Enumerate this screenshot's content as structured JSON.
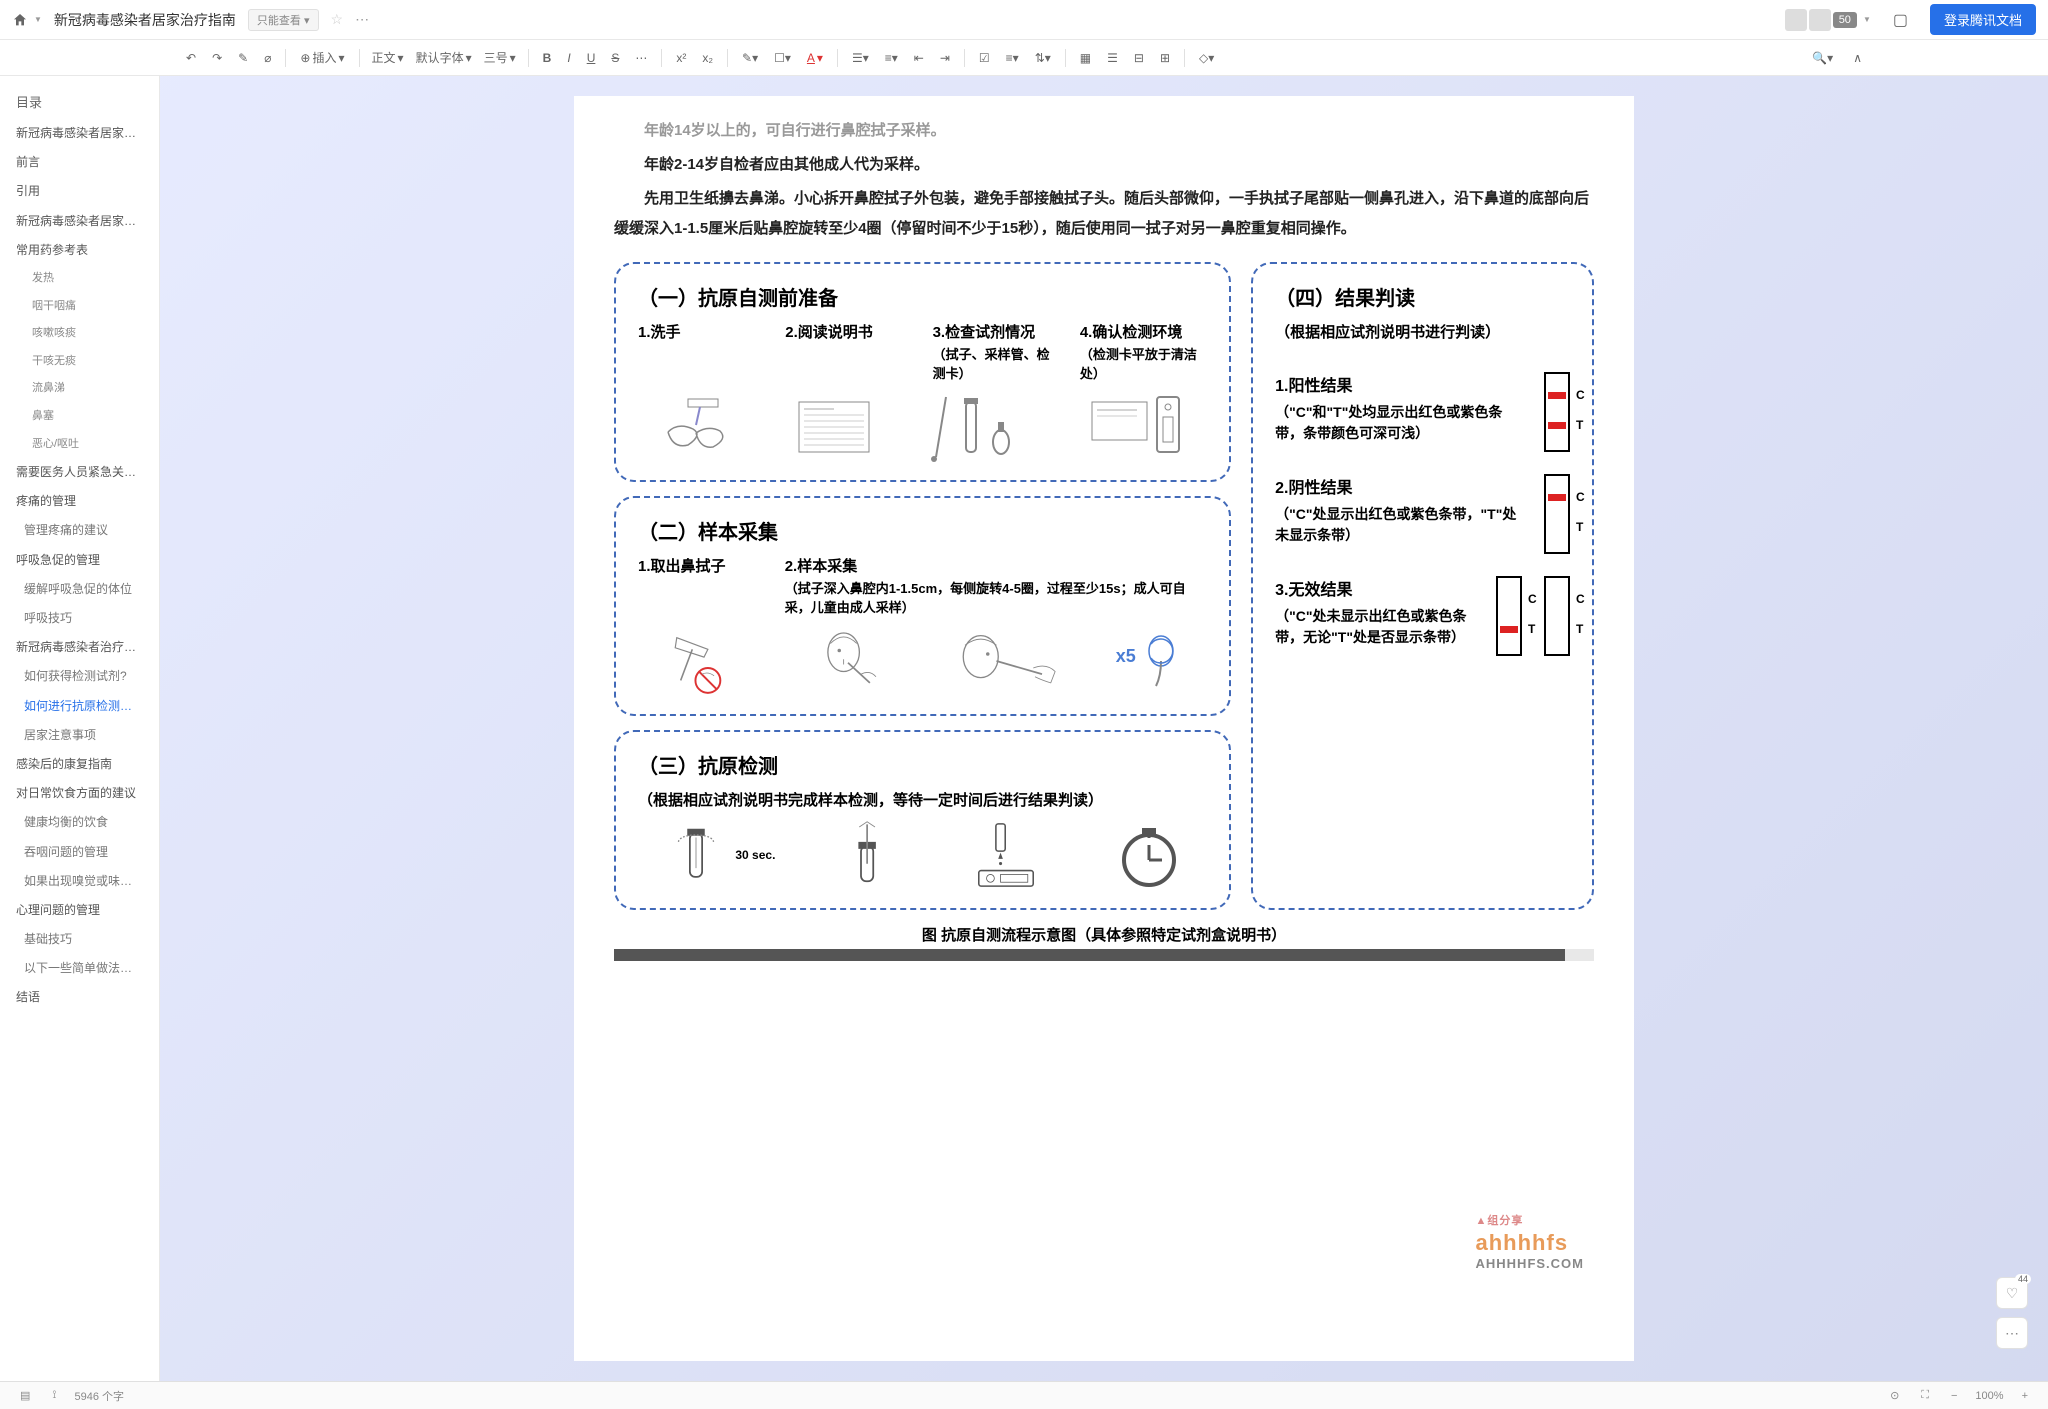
{
  "titlebar": {
    "doc_title": "新冠病毒感染者居家治疗指南",
    "readonly": "只能查看",
    "avatar_count": "50",
    "login": "登录腾讯文档"
  },
  "toolbar": {
    "insert": "插入",
    "style_normal": "正文",
    "font_default": "默认字体",
    "font_size": "三号"
  },
  "toc": {
    "title": "目录",
    "items": [
      {
        "label": "新冠病毒感染者居家治疗...",
        "level": 1
      },
      {
        "label": "前言",
        "level": 1
      },
      {
        "label": "引用",
        "level": 1
      },
      {
        "label": "新冠病毒感染者居家治疗...",
        "level": 1
      },
      {
        "label": "常用药参考表",
        "level": 1
      },
      {
        "label": "发热",
        "level": 3
      },
      {
        "label": "咽干咽痛",
        "level": 3
      },
      {
        "label": "咳嗽咳痰",
        "level": 3
      },
      {
        "label": "干咳无痰",
        "level": 3
      },
      {
        "label": "流鼻涕",
        "level": 3
      },
      {
        "label": "鼻塞",
        "level": 3
      },
      {
        "label": "恶心/呕吐",
        "level": 3
      },
      {
        "label": "需要医务人员紧急关注的 \"...",
        "level": 1
      },
      {
        "label": "疼痛的管理",
        "level": 1
      },
      {
        "label": "管理疼痛的建议",
        "level": 2
      },
      {
        "label": "呼吸急促的管理",
        "level": 1
      },
      {
        "label": "缓解呼吸急促的体位",
        "level": 2
      },
      {
        "label": "呼吸技巧",
        "level": 2
      },
      {
        "label": "新冠病毒感染者治疗抗原...",
        "level": 1
      },
      {
        "label": "如何获得检测试剂?",
        "level": 2
      },
      {
        "label": "如何进行抗原检测和结果判读?",
        "level": 2,
        "active": true
      },
      {
        "label": "居家注意事项",
        "level": 2
      },
      {
        "label": "感染后的康复指南",
        "level": 1
      },
      {
        "label": "对日常饮食方面的建议",
        "level": 1
      },
      {
        "label": "健康均衡的饮食",
        "level": 2
      },
      {
        "label": "吞咽问题的管理",
        "level": 2
      },
      {
        "label": "如果出现嗅觉或味觉下降，建议：",
        "level": 2
      },
      {
        "label": "心理问题的管理",
        "level": 1
      },
      {
        "label": "基础技巧",
        "level": 2
      },
      {
        "label": "以下一些简单做法会有所帮助：",
        "level": 2
      },
      {
        "label": "结语",
        "level": 1
      }
    ]
  },
  "body": {
    "p1": "年龄14岁以上的，可自行进行鼻腔拭子采样。",
    "p2": "年龄2-14岁自检者应由其他成人代为采样。",
    "p3": "先用卫生纸擤去鼻涕。小心拆开鼻腔拭子外包装，避免手部接触拭子头。随后头部微仰，一手执拭子尾部贴一侧鼻孔进入，沿下鼻道的底部向后缓缓深入1-1.5厘米后贴鼻腔旋转至少4圈（停留时间不少于15秒），随后使用同一拭子对另一鼻腔重复相同操作。"
  },
  "diagram": {
    "box1": {
      "title": "（一）抗原自测前准备",
      "steps": [
        {
          "t": "1.洗手",
          "n": ""
        },
        {
          "t": "2.阅读说明书",
          "n": ""
        },
        {
          "t": "3.检查试剂情况",
          "n": "（拭子、采样管、检测卡）"
        },
        {
          "t": "4.确认检测环境",
          "n": "（检测卡平放于清洁处）"
        }
      ]
    },
    "box2": {
      "title": "（二）样本采集",
      "step1": "1.取出鼻拭子",
      "step2": "2.样本采集",
      "desc": "（拭子深入鼻腔内1-1.5cm，每侧旋转4-5圈，过程至少15s；成人可自采，儿童由成人采样）",
      "x5": "x5"
    },
    "box3": {
      "title": "（三）抗原检测",
      "sub": "（根据相应试剂说明书完成样本检测，等待一定时间后进行结果判读）",
      "sec": "30 sec."
    },
    "box4": {
      "title": "（四）结果判读",
      "sub": "（根据相应试剂说明书进行判读）",
      "results": [
        {
          "t": "1.阳性结果",
          "d": "（\"C\"和\"T\"处均显示出红色或紫色条带，条带颜色可深可浅）",
          "c": "#d22",
          "tband": "#d22"
        },
        {
          "t": "2.阴性结果",
          "d": "（\"C\"处显示出红色或紫色条带，\"T\"处未显示条带）",
          "c": "#d22",
          "tband": ""
        },
        {
          "t": "3.无效结果",
          "d": "（\"C\"处未显示出红色或紫色条带，无论\"T\"处是否显示条带）",
          "c": "",
          "tband": "#d22",
          "double": true
        }
      ]
    },
    "caption": "图 抗原自测流程示意图（具体参照特定试剂盒说明书）"
  },
  "watermark": {
    "brand": "ahhhhfs",
    "url": "AHHHHFS.COM"
  },
  "float": {
    "like_count": "44"
  },
  "statusbar": {
    "word_count": "5946 个字",
    "zoom": "100%"
  },
  "colors": {
    "dash_border": "#4169b8",
    "accent": "#2670e8",
    "band_red": "#d22"
  }
}
